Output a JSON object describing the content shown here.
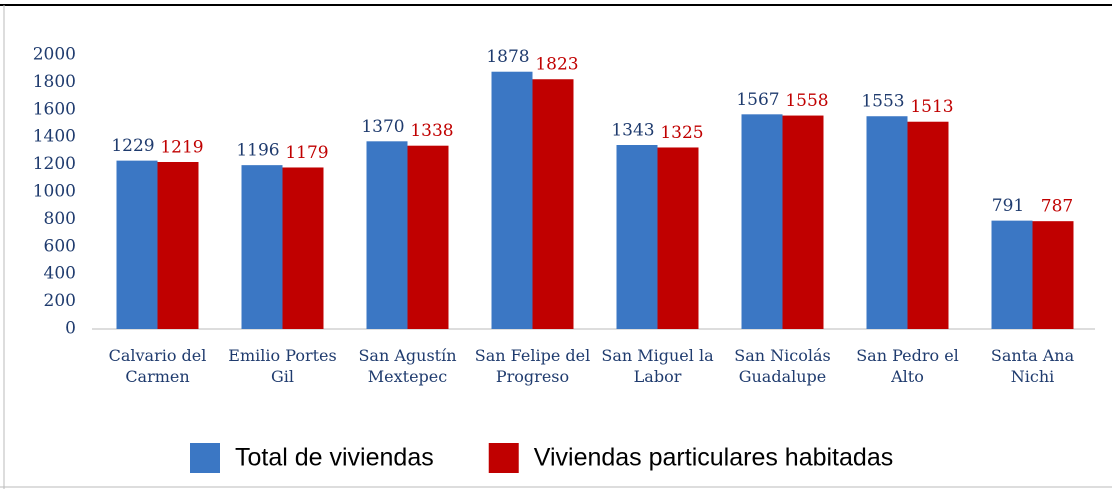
{
  "chart_data": {
    "type": "bar",
    "categories": [
      "Calvario del Carmen",
      "Emilio Portes Gil",
      "San Agustín Mextepec",
      "San Felipe del Progreso",
      "San Miguel la Labor",
      "San Nicolás Guadalupe",
      "San Pedro el Alto",
      "Santa Ana Nichi"
    ],
    "series": [
      {
        "name": "Total de viviendas",
        "color": "#3b77c4",
        "values": [
          1229,
          1196,
          1370,
          1878,
          1343,
          1567,
          1553,
          791
        ]
      },
      {
        "name": "Viviendas particulares habitadas",
        "color": "#c00000",
        "values": [
          1219,
          1179,
          1338,
          1823,
          1325,
          1558,
          1513,
          787
        ]
      }
    ],
    "ylim": [
      0,
      2000
    ],
    "yticks": [
      0,
      200,
      400,
      600,
      800,
      1000,
      1200,
      1400,
      1600,
      1800,
      2000
    ],
    "grid": false,
    "legend": "bottom"
  }
}
